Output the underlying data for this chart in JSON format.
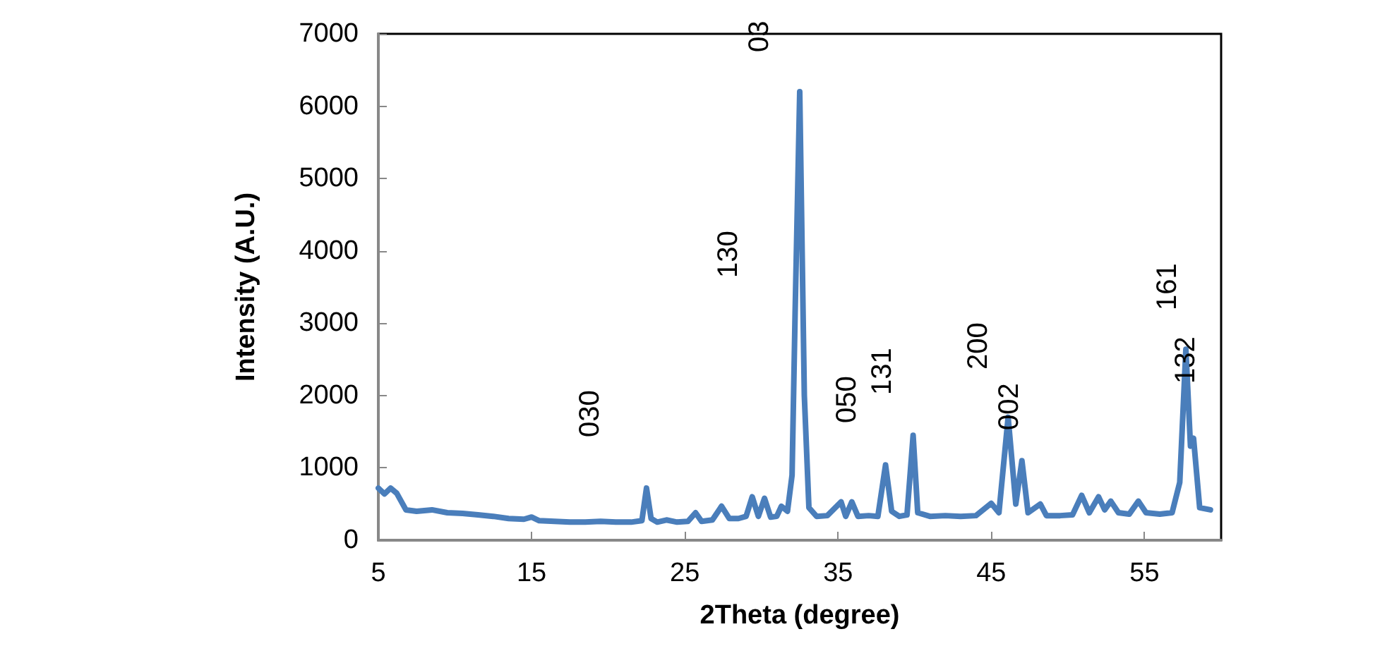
{
  "chart_data": {
    "type": "line",
    "xlabel": "2Theta (degree)",
    "ylabel": "Intensity (A.U.)",
    "x": [
      5,
      5.4,
      5.8,
      6.2,
      6.8,
      7.5,
      8.5,
      9.5,
      10.5,
      11.5,
      12.5,
      13.5,
      14.5,
      15,
      15.5,
      16.5,
      17.5,
      18.5,
      19.5,
      20.5,
      21.5,
      22.2,
      22.5,
      22.8,
      23.2,
      23.8,
      24.5,
      25.2,
      25.7,
      26.1,
      26.8,
      27.4,
      27.9,
      28.5,
      29.0,
      29.4,
      29.8,
      30.2,
      30.6,
      31.0,
      31.3,
      31.7,
      32.0,
      32.2,
      32.5,
      32.8,
      33.1,
      33.6,
      34.3,
      35.2,
      35.5,
      35.9,
      36.3,
      37.0,
      37.6,
      38.1,
      38.5,
      39.0,
      39.5,
      39.9,
      40.2,
      41,
      42,
      43,
      44,
      45,
      45.5,
      46.1,
      46.6,
      47.0,
      47.4,
      48.2,
      48.6,
      49.5,
      50.3,
      50.9,
      51.4,
      52.0,
      52.4,
      52.8,
      53.3,
      54,
      54.6,
      55.1,
      56,
      56.8,
      57.3,
      57.7,
      58.0,
      58.2,
      58.6,
      59.3
    ],
    "series": [
      {
        "color": "#4a7ebb",
        "values": [
          720,
          640,
          720,
          650,
          420,
          400,
          420,
          380,
          370,
          350,
          330,
          300,
          290,
          320,
          270,
          260,
          250,
          250,
          260,
          250,
          250,
          270,
          720,
          300,
          250,
          280,
          250,
          260,
          380,
          260,
          280,
          470,
          300,
          300,
          330,
          600,
          330,
          580,
          320,
          330,
          470,
          400,
          900,
          3150,
          6200,
          2000,
          450,
          330,
          340,
          530,
          330,
          530,
          330,
          340,
          330,
          1040,
          400,
          330,
          350,
          1450,
          380,
          330,
          340,
          330,
          340,
          510,
          380,
          1700,
          500,
          1100,
          380,
          500,
          340,
          340,
          350,
          620,
          380,
          600,
          420,
          540,
          380,
          360,
          540,
          380,
          360,
          380,
          800,
          2640,
          1300,
          1410,
          450,
          420
        ]
      }
    ],
    "xlim": [
      5,
      60
    ],
    "xticks": [
      5,
      15,
      25,
      35,
      45,
      55
    ],
    "ylim": [
      0,
      7000
    ],
    "yticks": [
      0,
      1000,
      2000,
      3000,
      4000,
      5000,
      6000,
      7000
    ],
    "grid": false,
    "marker": "none",
    "line_style": "solid",
    "annotations": [
      "030",
      "130",
      "03",
      "050",
      "131",
      "200",
      "002",
      "161",
      "132"
    ]
  }
}
